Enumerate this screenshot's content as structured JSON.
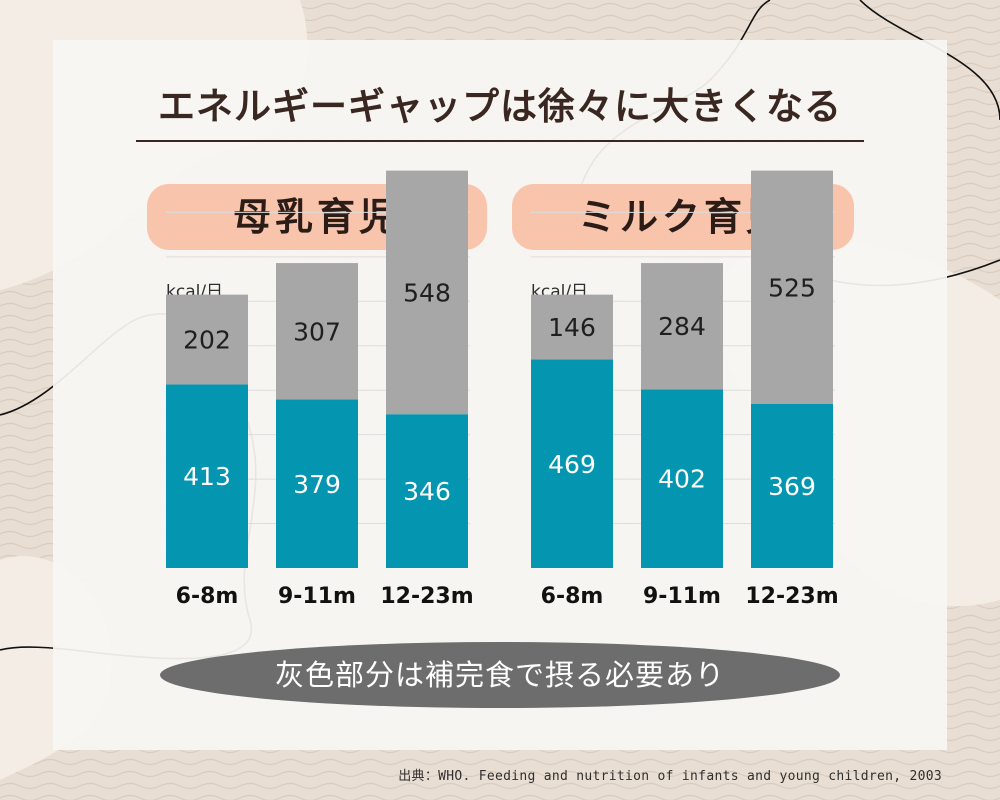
{
  "title": "エネルギーギャップは徐々に大きくなる",
  "panels": [
    {
      "title": "母乳育児",
      "unit": "kcal/日"
    },
    {
      "title": "ミルク育児",
      "unit": "kcal/日"
    }
  ],
  "note": "灰色部分は補完食で摂る必要あり",
  "source": "出典：WHO. Feeding and nutrition of infants and young children, 2003",
  "colors": {
    "bottom_segment": "#0496b1",
    "top_segment": "#a7a7a7",
    "pill": "#f8c4ab",
    "note_bg": "#6d6d6d",
    "background": "#e9ded3"
  },
  "chart_data": [
    {
      "type": "bar",
      "stacked": true,
      "title": "母乳育児",
      "ylabel": "kcal/日",
      "categories": [
        "6-8m",
        "9-11m",
        "12-23m"
      ],
      "series": [
        {
          "values": [
            413,
            379,
            346
          ]
        },
        {
          "values": [
            202,
            307,
            548
          ]
        }
      ],
      "ylim": [
        0,
        900
      ],
      "grid": true
    },
    {
      "type": "bar",
      "stacked": true,
      "title": "ミルク育児",
      "ylabel": "kcal/日",
      "categories": [
        "6-8m",
        "9-11m",
        "12-23m"
      ],
      "series": [
        {
          "values": [
            469,
            402,
            369
          ]
        },
        {
          "values": [
            146,
            284,
            525
          ]
        }
      ],
      "ylim": [
        0,
        900
      ],
      "grid": true
    }
  ]
}
